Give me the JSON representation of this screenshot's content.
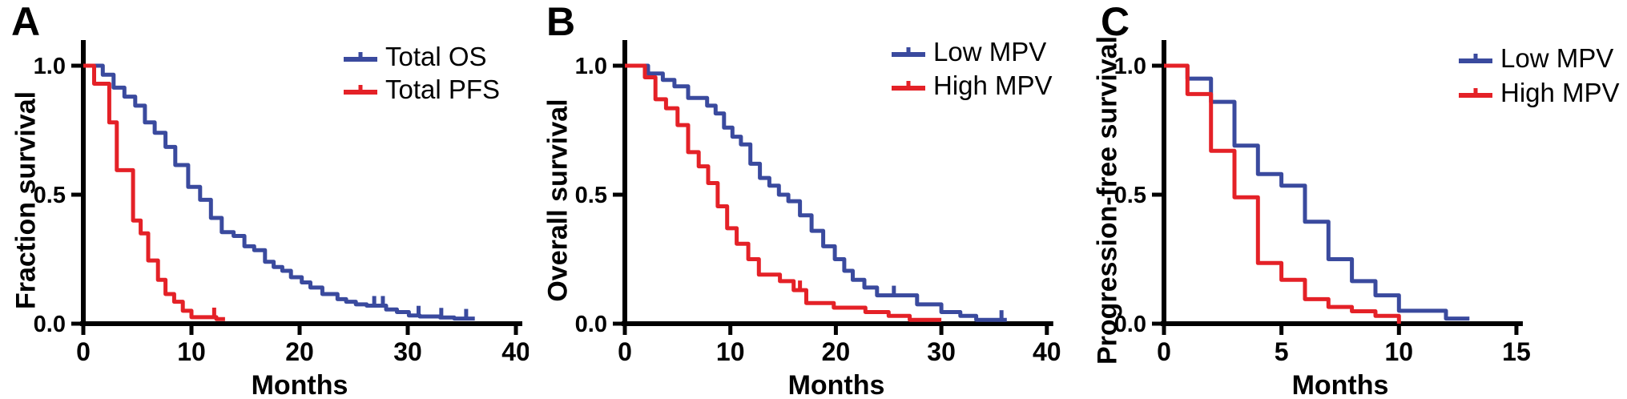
{
  "figure_title": "",
  "colors": {
    "blue": "#3a4a9e",
    "red": "#e42127",
    "axis": "#000000",
    "background": "#ffffff"
  },
  "chart_data": [
    {
      "type": "line",
      "subtype": "kaplan-meier-step",
      "letter": "A",
      "xlabel": "Months",
      "ylabel": "Fraction survival",
      "xlim": [
        0,
        40
      ],
      "ylim": [
        0.0,
        1.0
      ],
      "xticks": [
        0,
        10,
        20,
        30,
        40
      ],
      "ytick_values": [
        1.0,
        0.5,
        0.0
      ],
      "ytick_labels": [
        "1.0",
        "0.5",
        "0.0"
      ],
      "grid": false,
      "legend_position": "top-right",
      "legend": [
        {
          "label": "Total OS",
          "color": "#3a4a9e"
        },
        {
          "label": "Total PFS",
          "color": "#e42127"
        }
      ],
      "series": [
        {
          "name": "Total OS",
          "color": "#3a4a9e",
          "start_survival": 1.0,
          "steps": [
            [
              1.8,
              0.965
            ],
            [
              2.8,
              0.915
            ],
            [
              3.8,
              0.88
            ],
            [
              4.8,
              0.845
            ],
            [
              5.7,
              0.78
            ],
            [
              6.6,
              0.74
            ],
            [
              7.6,
              0.685
            ],
            [
              8.5,
              0.615
            ],
            [
              9.7,
              0.53
            ],
            [
              10.8,
              0.48
            ],
            [
              11.8,
              0.41
            ],
            [
              12.8,
              0.355
            ],
            [
              13.9,
              0.34
            ],
            [
              14.9,
              0.3
            ],
            [
              15.8,
              0.285
            ],
            [
              16.8,
              0.24
            ],
            [
              17.6,
              0.22
            ],
            [
              18.4,
              0.205
            ],
            [
              19.2,
              0.18
            ],
            [
              20.2,
              0.16
            ],
            [
              21.0,
              0.14
            ],
            [
              22.1,
              0.115
            ],
            [
              23.5,
              0.095
            ],
            [
              24.3,
              0.085
            ],
            [
              25.2,
              0.075
            ],
            [
              26.2,
              0.07
            ],
            [
              28.0,
              0.055
            ],
            [
              29.0,
              0.045
            ],
            [
              30.1,
              0.032
            ],
            [
              31.1,
              0.028
            ],
            [
              33.0,
              0.024
            ],
            [
              34.3,
              0.02
            ]
          ],
          "end_month": 36.2,
          "censor_marks": [
            26.9,
            27.7,
            31.0,
            33.1,
            35.4
          ]
        },
        {
          "name": "Total PFS",
          "color": "#e42127",
          "start_survival": 1.0,
          "steps": [
            [
              1.0,
              0.93
            ],
            [
              2.4,
              0.78
            ],
            [
              3.1,
              0.595
            ],
            [
              4.6,
              0.4
            ],
            [
              5.3,
              0.35
            ],
            [
              6.0,
              0.245
            ],
            [
              6.9,
              0.17
            ],
            [
              7.6,
              0.115
            ],
            [
              8.4,
              0.085
            ],
            [
              9.2,
              0.05
            ],
            [
              10.0,
              0.025
            ],
            [
              12.3,
              0.018
            ]
          ],
          "end_month": 13.1,
          "censor_marks": [
            12.1
          ]
        }
      ]
    },
    {
      "type": "line",
      "subtype": "kaplan-meier-step",
      "letter": "B",
      "xlabel": "Months",
      "ylabel": "Overall survival",
      "xlim": [
        0,
        40
      ],
      "ylim": [
        0.0,
        1.0
      ],
      "xticks": [
        0,
        10,
        20,
        30,
        40
      ],
      "ytick_values": [
        1.0,
        0.5,
        0.0
      ],
      "ytick_labels": [
        "1.0",
        "0.5",
        "0.0"
      ],
      "grid": false,
      "legend_position": "top-right",
      "legend": [
        {
          "label": "Low MPV",
          "color": "#3a4a9e"
        },
        {
          "label": "High MPV",
          "color": "#e42127"
        }
      ],
      "series": [
        {
          "name": "Low MPV",
          "color": "#3a4a9e",
          "start_survival": 1.0,
          "steps": [
            [
              2.2,
              0.97
            ],
            [
              3.6,
              0.945
            ],
            [
              4.7,
              0.92
            ],
            [
              6.0,
              0.875
            ],
            [
              7.8,
              0.845
            ],
            [
              8.6,
              0.815
            ],
            [
              9.4,
              0.76
            ],
            [
              10.2,
              0.725
            ],
            [
              11.0,
              0.695
            ],
            [
              11.9,
              0.62
            ],
            [
              12.8,
              0.565
            ],
            [
              13.7,
              0.535
            ],
            [
              14.6,
              0.5
            ],
            [
              15.5,
              0.475
            ],
            [
              16.6,
              0.42
            ],
            [
              17.7,
              0.36
            ],
            [
              18.8,
              0.3
            ],
            [
              19.9,
              0.25
            ],
            [
              20.8,
              0.205
            ],
            [
              21.6,
              0.17
            ],
            [
              22.7,
              0.14
            ],
            [
              23.9,
              0.11
            ],
            [
              27.7,
              0.075
            ],
            [
              30.0,
              0.045
            ],
            [
              31.8,
              0.03
            ],
            [
              33.3,
              0.015
            ]
          ],
          "end_month": 36.2,
          "censor_marks": [
            25.5,
            35.7
          ]
        },
        {
          "name": "High MPV",
          "color": "#e42127",
          "start_survival": 1.0,
          "steps": [
            [
              1.9,
              0.955
            ],
            [
              2.9,
              0.87
            ],
            [
              3.9,
              0.835
            ],
            [
              5.0,
              0.77
            ],
            [
              6.0,
              0.665
            ],
            [
              7.0,
              0.61
            ],
            [
              7.9,
              0.545
            ],
            [
              8.8,
              0.455
            ],
            [
              9.7,
              0.37
            ],
            [
              10.6,
              0.31
            ],
            [
              11.7,
              0.25
            ],
            [
              12.7,
              0.19
            ],
            [
              14.7,
              0.165
            ],
            [
              16.0,
              0.13
            ],
            [
              17.2,
              0.08
            ],
            [
              19.8,
              0.062
            ],
            [
              22.8,
              0.045
            ],
            [
              25.0,
              0.03
            ],
            [
              27.0,
              0.015
            ]
          ],
          "end_month": 30.0,
          "censor_marks": [
            16.6
          ]
        }
      ]
    },
    {
      "type": "line",
      "subtype": "kaplan-meier-step",
      "letter": "C",
      "xlabel": "Months",
      "ylabel": "Progression-free survival",
      "xlim": [
        0,
        15
      ],
      "ylim": [
        0.0,
        1.0
      ],
      "xticks": [
        0,
        5,
        10,
        15
      ],
      "ytick_values": [
        1.0,
        0.5,
        0.0
      ],
      "ytick_labels": [
        "1.0",
        "0.5",
        "0.0"
      ],
      "grid": false,
      "legend_position": "top-right",
      "legend": [
        {
          "label": "Low MPV",
          "color": "#3a4a9e"
        },
        {
          "label": "High MPV",
          "color": "#e42127"
        }
      ],
      "series": [
        {
          "name": "Low MPV",
          "color": "#3a4a9e",
          "start_survival": 1.0,
          "steps": [
            [
              1.0,
              0.95
            ],
            [
              2.0,
              0.86
            ],
            [
              3.0,
              0.69
            ],
            [
              4.0,
              0.58
            ],
            [
              5.0,
              0.535
            ],
            [
              6.0,
              0.395
            ],
            [
              7.0,
              0.25
            ],
            [
              8.0,
              0.165
            ],
            [
              9.0,
              0.11
            ],
            [
              10.0,
              0.05
            ],
            [
              12.0,
              0.02
            ]
          ],
          "end_month": 13.0,
          "censor_marks": []
        },
        {
          "name": "High MPV",
          "color": "#e42127",
          "start_survival": 1.0,
          "steps": [
            [
              1.0,
              0.89
            ],
            [
              2.0,
              0.67
            ],
            [
              3.0,
              0.49
            ],
            [
              4.0,
              0.235
            ],
            [
              5.0,
              0.17
            ],
            [
              6.0,
              0.095
            ],
            [
              7.0,
              0.065
            ],
            [
              8.0,
              0.048
            ],
            [
              9.0,
              0.03
            ],
            [
              10.0,
              0.0
            ]
          ],
          "end_month": 10.0,
          "censor_marks": []
        }
      ]
    }
  ]
}
